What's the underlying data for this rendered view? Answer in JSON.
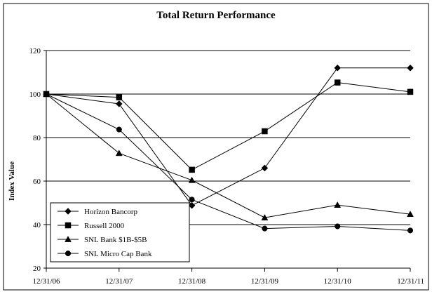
{
  "chart_data": {
    "type": "line",
    "title": "Total Return Performance",
    "xlabel": "",
    "ylabel": "Index Value",
    "categories": [
      "12/31/06",
      "12/31/07",
      "12/31/08",
      "12/31/09",
      "12/31/10",
      "12/31/11"
    ],
    "ylim": [
      20,
      120
    ],
    "yticks": [
      20,
      40,
      60,
      80,
      100,
      120
    ],
    "grid": true,
    "legend_position": "bottom-left",
    "series": [
      {
        "name": "Horizon Bancorp",
        "marker": "diamond",
        "values": [
          100,
          95.5,
          48.8,
          66,
          112,
          112
        ]
      },
      {
        "name": "Russell 2000",
        "marker": "square",
        "values": [
          100,
          98.5,
          65.2,
          82.9,
          105.3,
          101
        ]
      },
      {
        "name": "SNL Bank $1B-$5B",
        "marker": "triangle",
        "values": [
          100,
          72.8,
          60.4,
          43.2,
          49,
          44.8
        ]
      },
      {
        "name": "SNL Micro Cap Bank",
        "marker": "circle",
        "values": [
          100,
          83.7,
          51.5,
          38.2,
          39.2,
          37.3
        ]
      }
    ]
  }
}
